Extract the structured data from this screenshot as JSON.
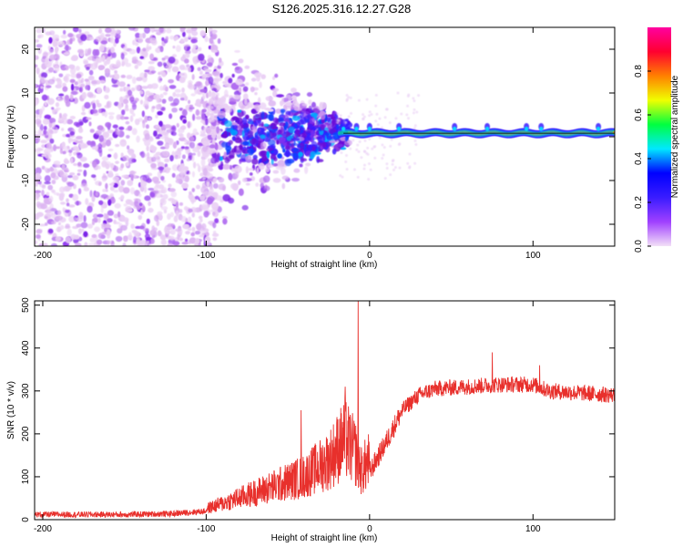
{
  "title": "S126.2025.316.12.27.G28",
  "chart_data": [
    {
      "type": "heatmap",
      "id": "spectrogram",
      "xlabel": "Height of straight line (km)",
      "ylabel": "Frequency (Hz)",
      "xlim": [
        -205,
        150
      ],
      "ylim": [
        -25,
        25
      ],
      "xticks": [
        -200,
        -100,
        0,
        100
      ],
      "yticks": [
        -20,
        -10,
        0,
        10,
        20
      ],
      "colorbar": {
        "label": "Normalized spectral amplitude",
        "range": [
          0,
          1
        ],
        "ticks": [
          "0.0",
          "0.2",
          "0.4",
          "0.6",
          "0.8"
        ],
        "tick_values": [
          0.0,
          0.2,
          0.4,
          0.6,
          0.8
        ],
        "colors": [
          "#f3e0f7",
          "#a040ff",
          "#3a1cff",
          "#0000ff",
          "#00e8ff",
          "#00ff40",
          "#f0ff00",
          "#ff8000",
          "#ff0030",
          "#ff00a0"
        ]
      },
      "ridge": {
        "x_start": -18,
        "x_end": 150,
        "frequency_hz": 0.8
      },
      "noise_region": {
        "x_start": -205,
        "x_end": -100
      },
      "transition_region": {
        "x_start": -100,
        "x_end": -15
      }
    },
    {
      "type": "line",
      "id": "snr",
      "xlabel": "Height of straight line (km)",
      "ylabel": "SNR (10 * v/v)",
      "xlim": [
        -205,
        150
      ],
      "ylim": [
        0,
        510
      ],
      "xticks": [
        -200,
        -100,
        0,
        100
      ],
      "yticks": [
        0,
        100,
        200,
        300,
        400,
        500
      ],
      "color": "#e8302c",
      "envelope": {
        "x": [
          -205,
          -150,
          -120,
          -100,
          -80,
          -60,
          -40,
          -25,
          -15,
          -8,
          -5,
          0,
          10,
          20,
          30,
          40,
          60,
          80,
          100,
          110,
          130,
          150
        ],
        "y": [
          12,
          12,
          14,
          20,
          40,
          60,
          80,
          110,
          150,
          120,
          90,
          110,
          180,
          255,
          290,
          305,
          310,
          315,
          315,
          300,
          295,
          290
        ]
      },
      "spikes": [
        {
          "x": -7,
          "y": 510
        },
        {
          "x": -15,
          "y": 310
        },
        {
          "x": -42,
          "y": 255
        },
        {
          "x": 75,
          "y": 390
        },
        {
          "x": 104,
          "y": 360
        }
      ]
    }
  ]
}
